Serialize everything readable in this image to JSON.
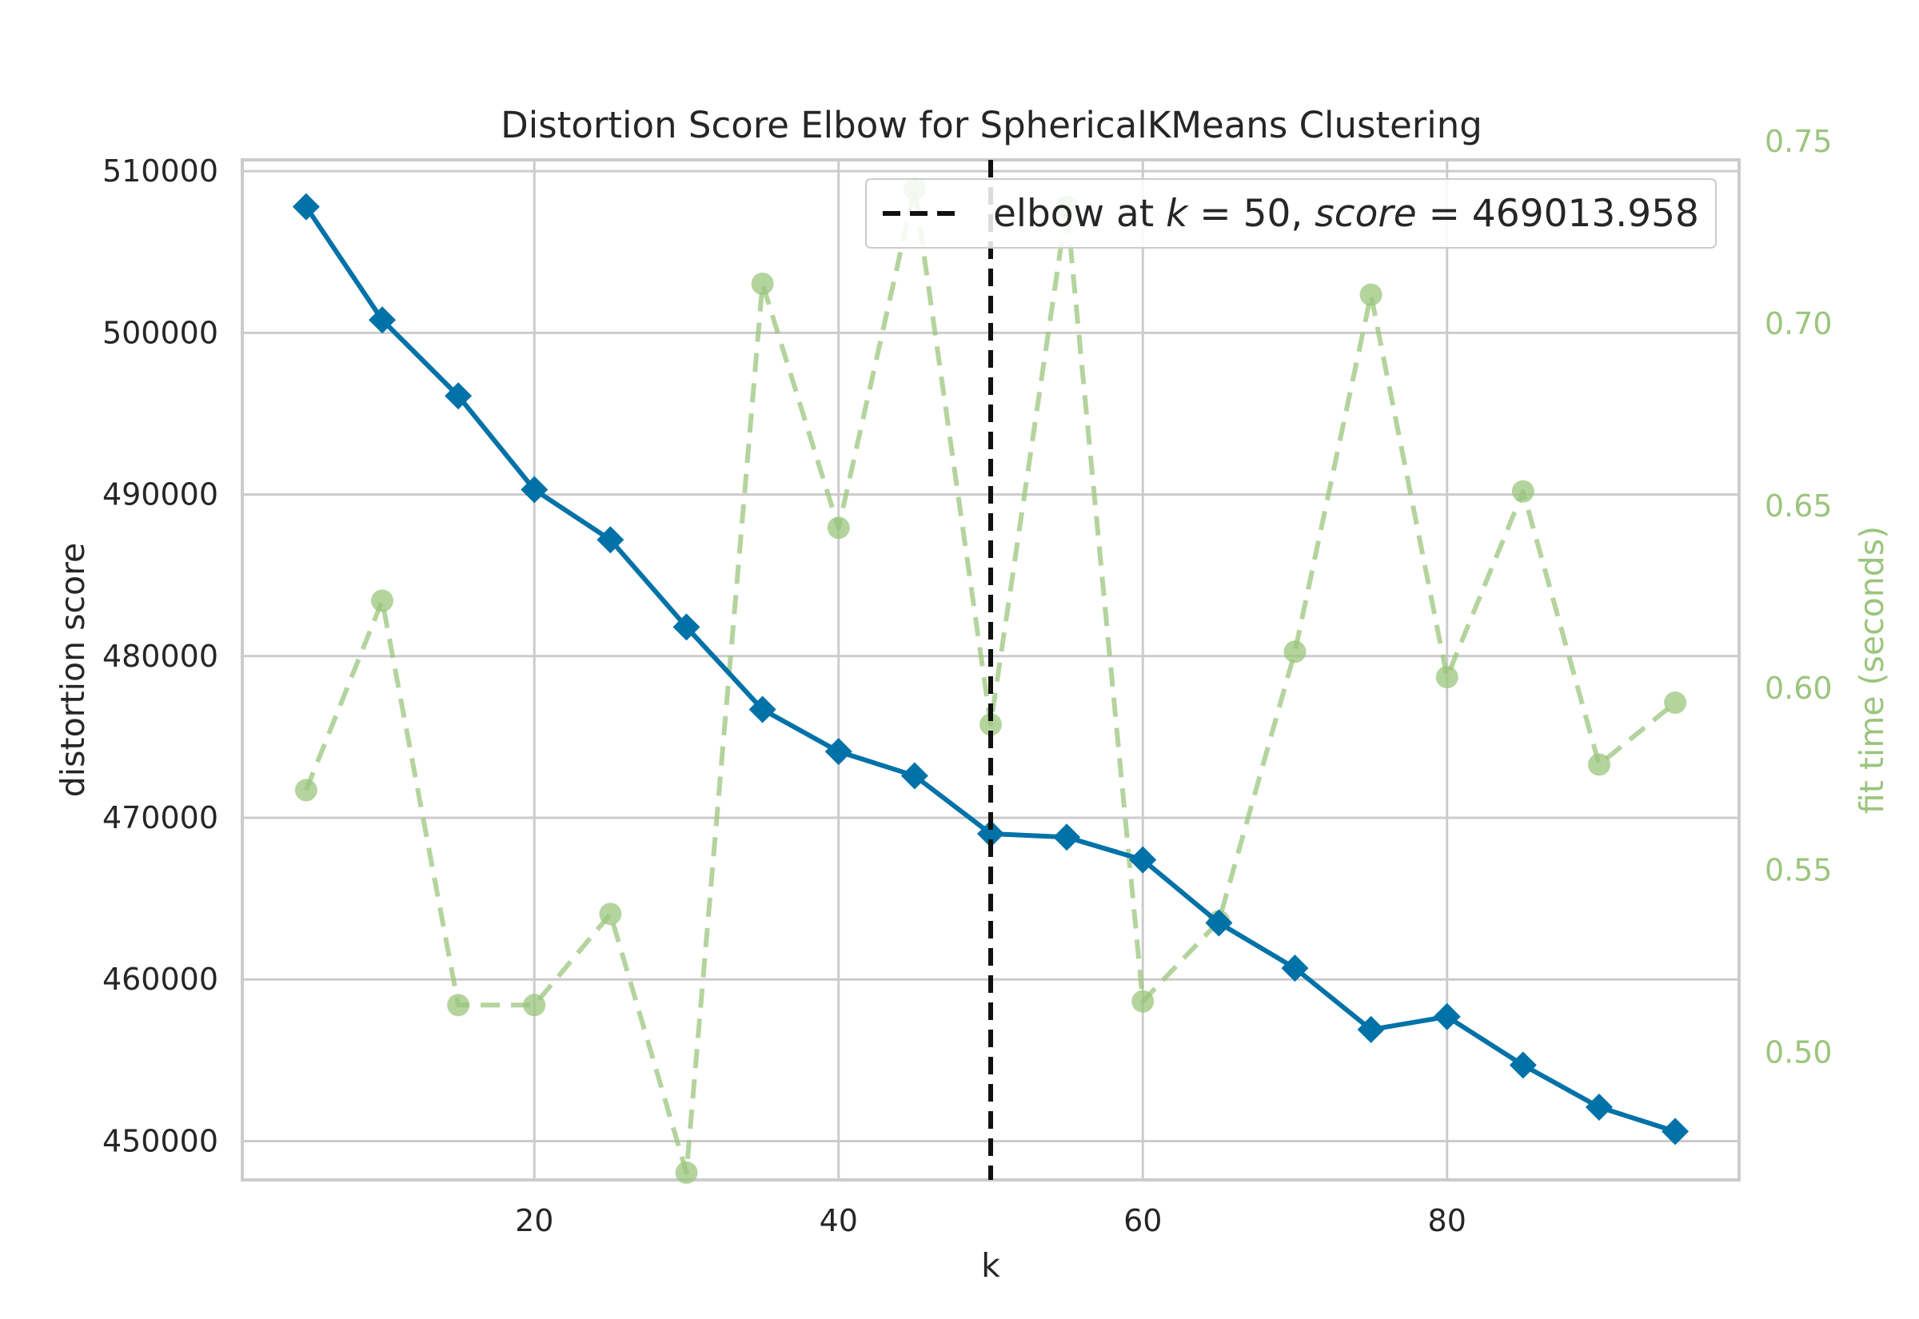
{
  "chart_data": {
    "type": "line",
    "title": "Distortion Score Elbow for SphericalKMeans Clustering",
    "xlabel": "k",
    "ylabel": "distortion score",
    "y2label": "fit time (seconds)",
    "xlim": [
      0.8,
      99.2
    ],
    "ylim": [
      447600,
      510700
    ],
    "y2lim": [
      0.465,
      0.745
    ],
    "xticks": [
      20,
      40,
      60,
      80
    ],
    "yticks": [
      450000,
      460000,
      470000,
      480000,
      490000,
      500000,
      510000
    ],
    "y2ticks": [
      0.5,
      0.55,
      0.6,
      0.65,
      0.7,
      0.75
    ],
    "xticklabels": [
      "20",
      "40",
      "60",
      "80"
    ],
    "yticklabels": [
      "450000",
      "460000",
      "470000",
      "480000",
      "490000",
      "500000",
      "510000"
    ],
    "y2ticklabels": [
      "0.50",
      "0.55",
      "0.60",
      "0.65",
      "0.70",
      "0.75"
    ],
    "grid": true,
    "x": [
      5,
      10,
      15,
      20,
      25,
      30,
      35,
      40,
      45,
      50,
      55,
      60,
      65,
      70,
      75,
      80,
      85,
      90,
      95
    ],
    "series": [
      {
        "axis": "left",
        "color": "#0072a8",
        "style": "solid",
        "marker": "diamond",
        "values": [
          507800,
          500800,
          496100,
          490300,
          487200,
          481800,
          476700,
          474100,
          472600,
          469014,
          468800,
          467400,
          463500,
          460700,
          456900,
          457700,
          454700,
          452100,
          450600
        ]
      },
      {
        "axis": "right",
        "color": "#9bc57d",
        "style": "dashed",
        "marker": "circle",
        "values": [
          0.572,
          0.624,
          0.513,
          0.513,
          0.538,
          0.467,
          0.711,
          0.644,
          0.737,
          0.59,
          0.732,
          0.514,
          0.536,
          0.61,
          0.708,
          0.603,
          0.654,
          0.579,
          0.596
        ]
      }
    ],
    "elbow": {
      "k": 50,
      "score": 469013.958,
      "color": "#000000",
      "style": "dashed",
      "legend_label_prefix": "elbow at ",
      "legend_k_var": "k",
      "legend_eq1": " = 50, ",
      "legend_score_var": "score",
      "legend_eq2": " = 469013.958"
    },
    "legend_position": "top-right"
  }
}
